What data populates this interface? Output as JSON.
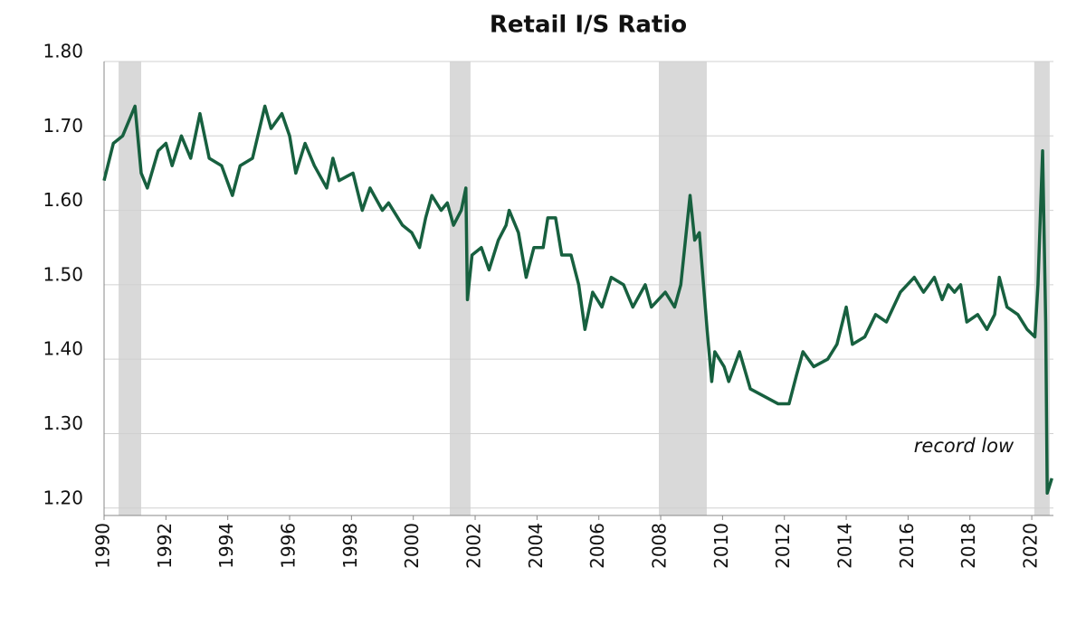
{
  "chart_data": {
    "type": "line",
    "title": "Retail I/S Ratio",
    "annotation": "record low",
    "x": [
      1990.0,
      1990.3,
      1990.6,
      1991.0,
      1991.2,
      1991.4,
      1991.75,
      1992.0,
      1992.2,
      1992.5,
      1992.8,
      1993.1,
      1993.4,
      1993.8,
      1994.15,
      1994.4,
      1994.8,
      1995.2,
      1995.4,
      1995.75,
      1996.0,
      1996.2,
      1996.5,
      1996.8,
      1997.2,
      1997.4,
      1997.6,
      1998.05,
      1998.35,
      1998.6,
      1999.0,
      1999.2,
      1999.65,
      1999.95,
      2000.2,
      2000.4,
      2000.6,
      2000.9,
      2001.1,
      2001.3,
      2001.55,
      2001.7,
      2001.75,
      2001.9,
      2002.2,
      2002.45,
      2002.75,
      2003.0,
      2003.1,
      2003.4,
      2003.65,
      2003.9,
      2004.2,
      2004.35,
      2004.6,
      2004.8,
      2005.1,
      2005.35,
      2005.55,
      2005.8,
      2006.1,
      2006.4,
      2006.8,
      2007.1,
      2007.5,
      2007.7,
      2008.15,
      2008.45,
      2008.65,
      2008.95,
      2009.1,
      2009.25,
      2009.5,
      2009.65,
      2009.75,
      2010.05,
      2010.2,
      2010.55,
      2010.9,
      2011.35,
      2011.8,
      2012.15,
      2012.4,
      2012.6,
      2012.95,
      2013.4,
      2013.7,
      2014.0,
      2014.2,
      2014.6,
      2014.95,
      2015.3,
      2015.75,
      2016.2,
      2016.5,
      2016.85,
      2017.1,
      2017.3,
      2017.5,
      2017.7,
      2017.9,
      2018.25,
      2018.55,
      2018.8,
      2018.95,
      2019.2,
      2019.55,
      2019.85,
      2020.1,
      2020.2,
      2020.35,
      2020.45,
      2020.5,
      2020.65
    ],
    "values": [
      1.64,
      1.69,
      1.7,
      1.74,
      1.65,
      1.63,
      1.68,
      1.69,
      1.66,
      1.7,
      1.67,
      1.73,
      1.67,
      1.66,
      1.62,
      1.66,
      1.67,
      1.74,
      1.71,
      1.73,
      1.7,
      1.65,
      1.69,
      1.66,
      1.63,
      1.67,
      1.64,
      1.65,
      1.6,
      1.63,
      1.6,
      1.61,
      1.58,
      1.57,
      1.55,
      1.59,
      1.62,
      1.6,
      1.61,
      1.58,
      1.6,
      1.63,
      1.48,
      1.54,
      1.55,
      1.52,
      1.56,
      1.58,
      1.6,
      1.57,
      1.51,
      1.55,
      1.55,
      1.59,
      1.59,
      1.54,
      1.54,
      1.5,
      1.44,
      1.49,
      1.47,
      1.51,
      1.5,
      1.47,
      1.5,
      1.47,
      1.49,
      1.47,
      1.5,
      1.62,
      1.56,
      1.57,
      1.44,
      1.37,
      1.41,
      1.39,
      1.37,
      1.41,
      1.36,
      1.35,
      1.34,
      1.34,
      1.38,
      1.41,
      1.39,
      1.4,
      1.42,
      1.47,
      1.42,
      1.43,
      1.46,
      1.45,
      1.49,
      1.51,
      1.49,
      1.51,
      1.48,
      1.5,
      1.49,
      1.5,
      1.45,
      1.46,
      1.44,
      1.46,
      1.51,
      1.47,
      1.46,
      1.44,
      1.43,
      1.5,
      1.68,
      1.45,
      1.22,
      1.24
    ],
    "color": "#17603f",
    "recessions": [
      [
        1990.47,
        1991.2
      ],
      [
        2001.18,
        2001.85
      ],
      [
        2007.94,
        2009.49
      ],
      [
        2020.08,
        2020.58
      ]
    ],
    "recession_color": "#d9d9d9",
    "xlim": [
      1990,
      2020.7
    ],
    "xticks": [
      1990,
      1992,
      1994,
      1996,
      1998,
      2000,
      2002,
      2004,
      2006,
      2008,
      2010,
      2012,
      2014,
      2016,
      2018,
      2020
    ],
    "ylim": [
      1.19,
      1.8
    ],
    "yticks": [
      {
        "value": 1.2,
        "label": "1.20"
      },
      {
        "value": 1.3,
        "label": "1.30"
      },
      {
        "value": 1.4,
        "label": "1.40"
      },
      {
        "value": 1.5,
        "label": "1.50"
      },
      {
        "value": 1.6,
        "label": "1.60"
      },
      {
        "value": 1.7,
        "label": "1.70"
      },
      {
        "value": 1.8,
        "label": "1.80"
      }
    ],
    "grid": true
  }
}
